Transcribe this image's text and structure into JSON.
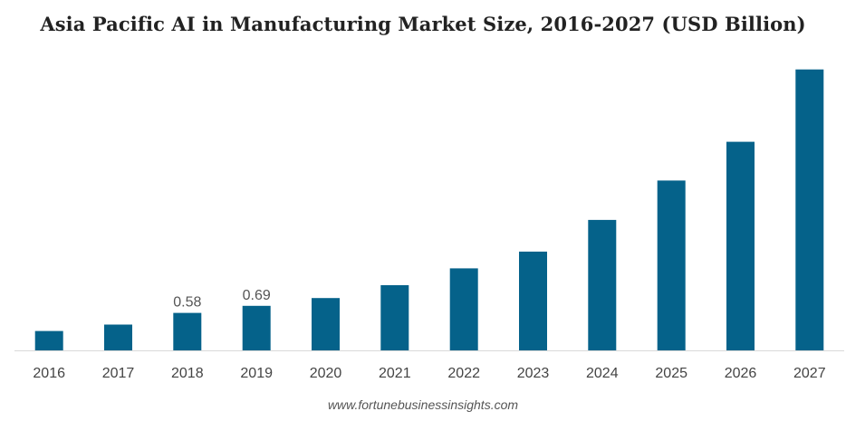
{
  "chart_data": {
    "type": "bar",
    "title": "Asia Pacific AI in Manufacturing Market Size, 2016-2027 (USD Billion)",
    "xlabel": "",
    "ylabel": "",
    "categories": [
      "2016",
      "2017",
      "2018",
      "2019",
      "2020",
      "2021",
      "2022",
      "2023",
      "2024",
      "2025",
      "2026",
      "2027"
    ],
    "values": [
      0.3,
      0.4,
      0.58,
      0.69,
      0.81,
      1.01,
      1.27,
      1.53,
      2.02,
      2.63,
      3.23,
      4.35
    ],
    "data_labels": [
      "",
      "",
      "0.58",
      "0.69",
      "",
      "",
      "",
      "",
      "",
      "",
      "",
      ""
    ],
    "ylim": [
      0,
      4.5
    ],
    "grid": false,
    "legend": "none",
    "bar_color": "#05628a",
    "axis_color": "#d9d9d9"
  },
  "source": "www.fortunebusinessinsights.com"
}
